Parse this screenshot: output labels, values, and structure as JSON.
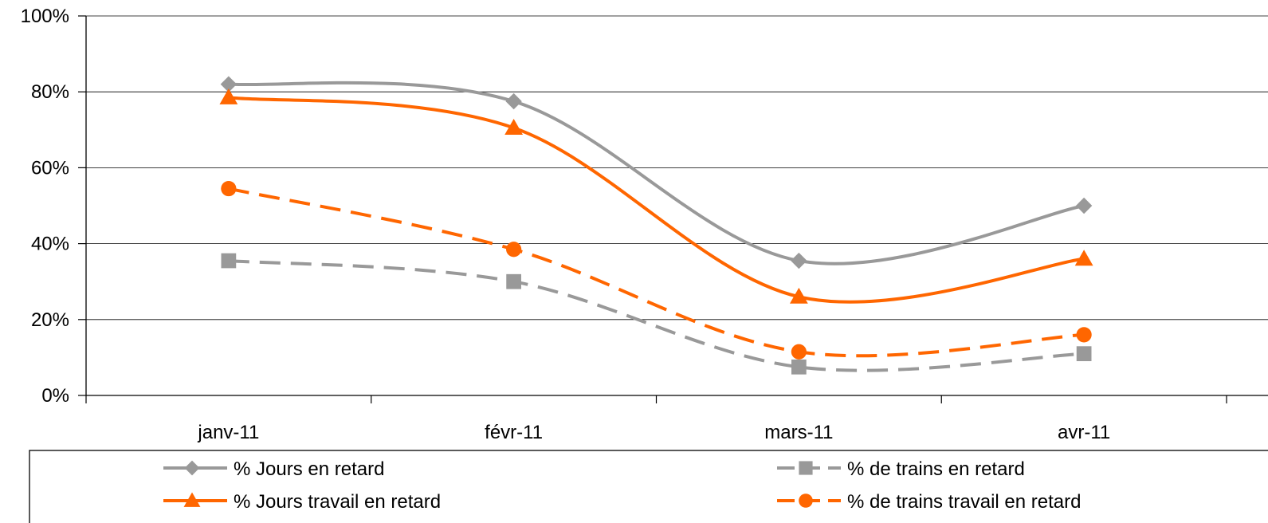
{
  "chart_data": {
    "type": "line",
    "title": "",
    "xlabel": "",
    "ylabel": "",
    "categories": [
      "janv-11",
      "févr-11",
      "mars-11",
      "avr-11"
    ],
    "ylim": [
      0,
      100
    ],
    "y_ticks": [
      "0%",
      "20%",
      "40%",
      "60%",
      "80%",
      "100%"
    ],
    "y_tick_values": [
      0,
      20,
      40,
      60,
      80,
      100
    ],
    "grid": true,
    "legend_position": "bottom",
    "series": [
      {
        "name": "% Jours en retard",
        "values": [
          82,
          77.5,
          35.5,
          50
        ],
        "color": "#999999",
        "dash": "solid",
        "marker": "diamond"
      },
      {
        "name": "% de trains en retard",
        "values": [
          35.5,
          30,
          7.5,
          11
        ],
        "color": "#999999",
        "dash": "dashed",
        "marker": "square"
      },
      {
        "name": "% Jours travail en retard",
        "values": [
          78.5,
          70.5,
          26,
          36
        ],
        "color": "#ff6600",
        "dash": "solid",
        "marker": "triangle"
      },
      {
        "name": "% de trains travail en retard",
        "values": [
          54.5,
          38.5,
          11.5,
          16
        ],
        "color": "#ff6600",
        "dash": "dashed",
        "marker": "circle"
      }
    ]
  }
}
